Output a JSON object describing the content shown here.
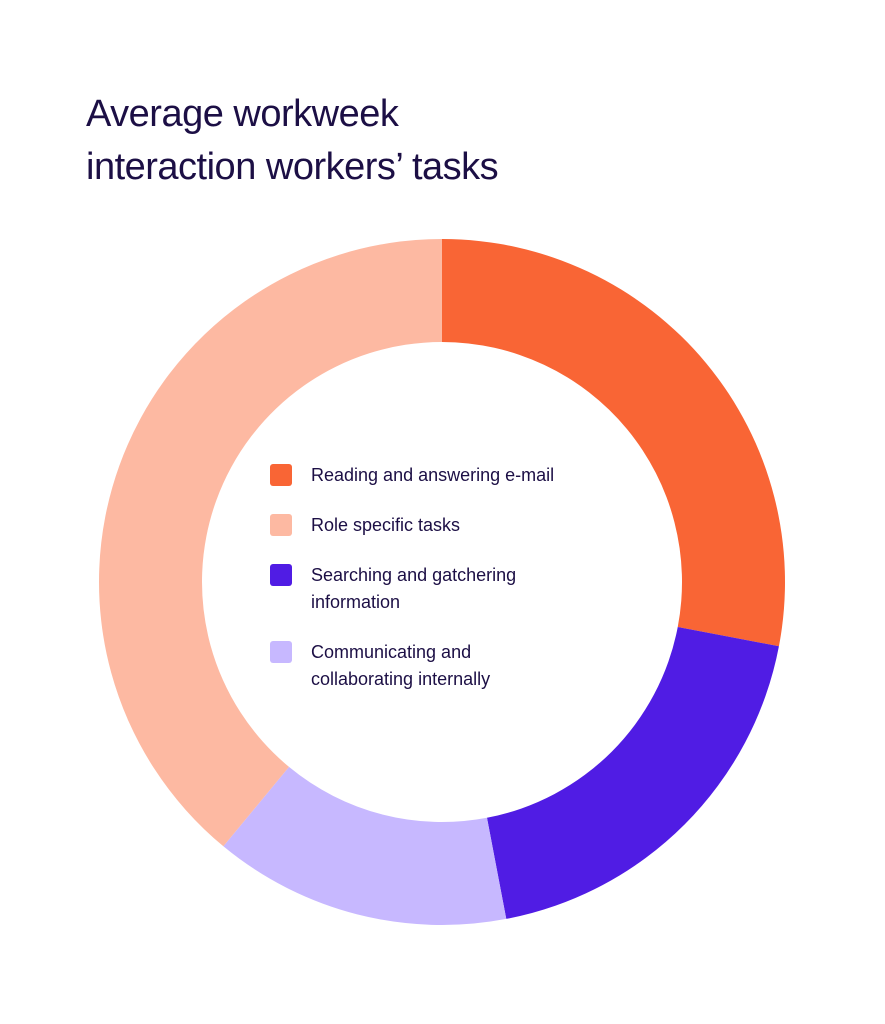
{
  "chart_data": {
    "type": "pie",
    "title": "Average workweek interaction workers’ tasks",
    "title_lines": [
      "Average workweek",
      "interaction workers’ tasks"
    ],
    "style": "donut",
    "slices": [
      {
        "label": "Reading and answering e-mail",
        "display_label": "Reading and answering e-mail",
        "value": 28,
        "color": "#f96535"
      },
      {
        "label": "Searching and gatchering information",
        "display_label": "Searching and gatchering\ninformation",
        "value": 19,
        "color": "#501ce4"
      },
      {
        "label": "Communicating and collaborating internally",
        "display_label": "Communicating and\ncollaborating internally",
        "value": 14,
        "color": "#c7b8ff"
      },
      {
        "label": "Role specific tasks",
        "display_label": "Role specific tasks",
        "value": 39,
        "color": "#fdb9a2"
      }
    ],
    "legend_order": [
      0,
      3,
      1,
      2
    ],
    "legend_position": "center"
  }
}
